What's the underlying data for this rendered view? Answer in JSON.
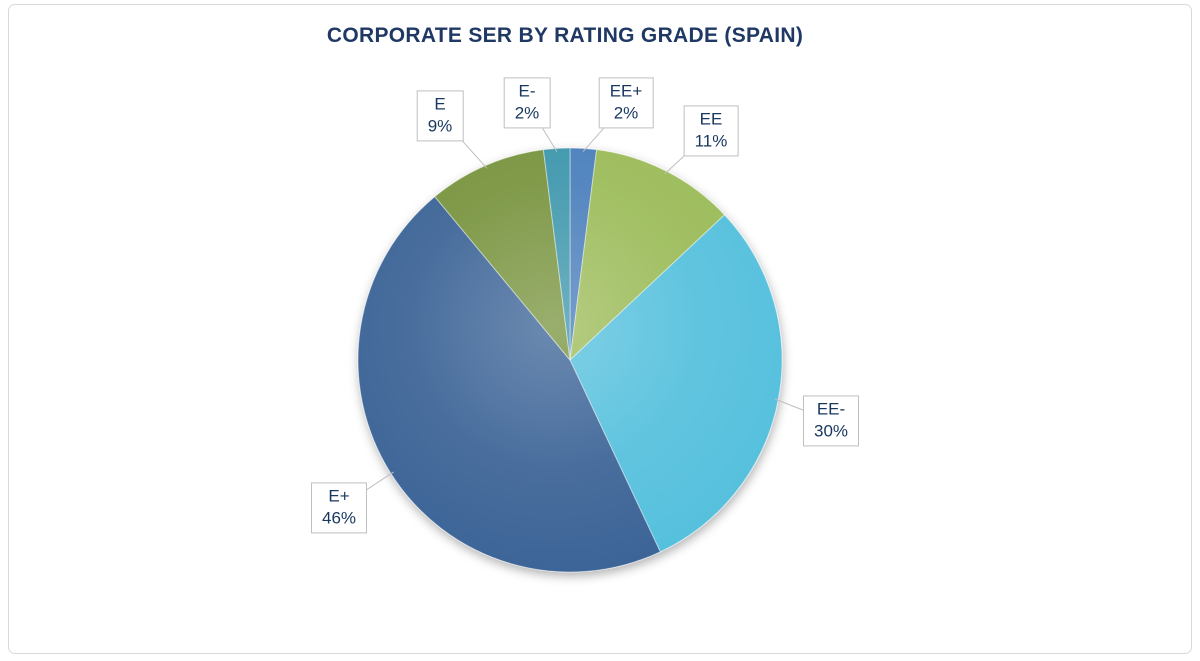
{
  "page": {
    "background": "#FFFFFF",
    "frame_border_color": "#D9D9D9",
    "title_color": "#1F3864",
    "label_text_color": "#17375E",
    "leader_line_color": "#BFBFBF"
  },
  "chart_data": {
    "type": "pie",
    "title": "CORPORATE SER BY RATING GRADE (SPAIN)",
    "start_angle_deg": 0,
    "direction": "clockwise",
    "legend": "none",
    "label_style": "callout-boxes-with-leader-lines",
    "units": "percent",
    "slices": [
      {
        "label": "EE+",
        "value": 2,
        "value_text": "2%",
        "color": "#4A7EBB"
      },
      {
        "label": "EE",
        "value": 11,
        "value_text": "11%",
        "color": "#9BBB59"
      },
      {
        "label": "EE-",
        "value": 30,
        "value_text": "30%",
        "color": "#55C0DD"
      },
      {
        "label": "E+",
        "value": 46,
        "value_text": "46%",
        "color": "#3A6496"
      },
      {
        "label": "E",
        "value": 9,
        "value_text": "9%",
        "color": "#77933C"
      },
      {
        "label": "E-",
        "value": 2,
        "value_text": "2%",
        "color": "#3E96AC"
      }
    ]
  }
}
